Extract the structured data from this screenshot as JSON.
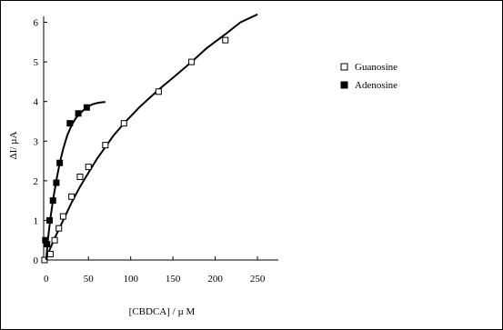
{
  "chart_data": {
    "type": "scatter",
    "title": "",
    "xlabel": "[CBDCA] / µ M",
    "ylabel": "ΔI/ µA",
    "xlim": [
      -3,
      265
    ],
    "ylim": [
      0,
      6.15
    ],
    "xticks": [
      0,
      50,
      100,
      150,
      200,
      250
    ],
    "yticks": [
      0,
      1,
      2,
      3,
      4,
      5,
      6
    ],
    "grid": false,
    "legend_position": "top-right",
    "series": [
      {
        "name": "Guanosine",
        "marker": "open-square",
        "color": "#000000",
        "x": [
          -2,
          5,
          10,
          15,
          20,
          30,
          40,
          50,
          70,
          92,
          133,
          172,
          212
        ],
        "y": [
          0.0,
          0.15,
          0.5,
          0.8,
          1.1,
          1.6,
          2.1,
          2.35,
          2.9,
          3.45,
          4.25,
          5.0,
          5.55
        ],
        "fit": {
          "x": [
            0,
            2,
            5,
            10,
            20,
            30,
            40,
            50,
            60,
            70,
            80,
            92,
            110,
            133,
            150,
            172,
            190,
            212,
            230,
            250
          ],
          "y": [
            0.0,
            0.15,
            0.3,
            0.55,
            1.0,
            1.45,
            1.85,
            2.2,
            2.55,
            2.85,
            3.15,
            3.45,
            3.85,
            4.3,
            4.6,
            5.0,
            5.35,
            5.7,
            6.0,
            6.2
          ]
        }
      },
      {
        "name": "Adenosine",
        "marker": "filled-square",
        "color": "#000000",
        "x": [
          -1,
          1,
          4,
          8,
          12,
          16,
          28,
          38,
          48
        ],
        "y": [
          0.5,
          0.4,
          1.0,
          1.5,
          1.95,
          2.45,
          3.45,
          3.7,
          3.85
        ],
        "fit": {
          "x": [
            0,
            2,
            5,
            8,
            12,
            16,
            20,
            25,
            30,
            35,
            40,
            45,
            50,
            55,
            60,
            65,
            70
          ],
          "y": [
            0.0,
            0.5,
            1.05,
            1.5,
            2.0,
            2.45,
            2.8,
            3.15,
            3.4,
            3.58,
            3.7,
            3.8,
            3.88,
            3.93,
            3.96,
            3.98,
            3.99
          ]
        }
      }
    ]
  }
}
